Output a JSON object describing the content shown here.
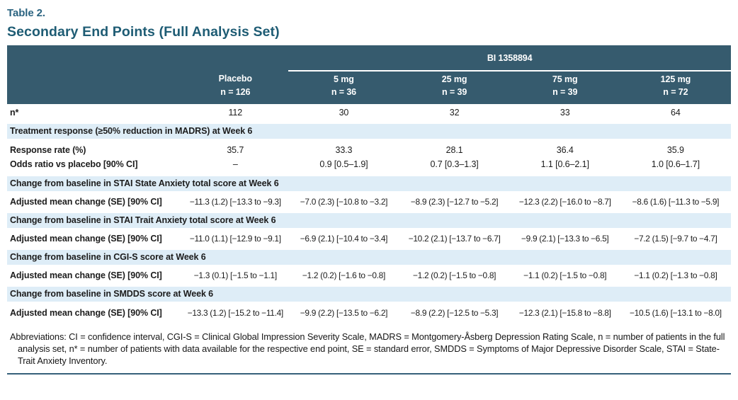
{
  "colors": {
    "header_background": "#365b6e",
    "section_band_background": "#deedf7",
    "title_teal": "#1e5c74",
    "eyebrow_teal": "#2a6380",
    "bottom_rule": "#36607a"
  },
  "title": {
    "eyebrow": "Table 2.",
    "heading": "Secondary End Points (Full Analysis Set)"
  },
  "table": {
    "spanner": "BI 1358894",
    "columns": [
      {
        "label": "Placebo",
        "n": "n = 126"
      },
      {
        "label": "5 mg",
        "n": "n = 36"
      },
      {
        "label": "25 mg",
        "n": "n = 39"
      },
      {
        "label": "75 mg",
        "n": "n = 39"
      },
      {
        "label": "125 mg",
        "n": "n = 72"
      }
    ],
    "n_row": {
      "label": "n*",
      "values": [
        "112",
        "30",
        "32",
        "33",
        "64"
      ]
    },
    "sections": [
      {
        "band": "Treatment response (≥50% reduction in MADRS) at Week 6",
        "rows": [
          {
            "label": "Response rate (%)",
            "values": [
              "35.7",
              "33.3",
              "28.1",
              "36.4",
              "35.9"
            ]
          },
          {
            "label": "Odds ratio vs placebo [90% CI]",
            "values": [
              "–",
              "0.9 [0.5–1.9]",
              "0.7 [0.3–1.3]",
              "1.1 [0.6–2.1]",
              "1.0 [0.6–1.7]"
            ]
          }
        ]
      },
      {
        "band": "Change from baseline in STAI State Anxiety total score at Week 6",
        "rows": [
          {
            "label": "Adjusted mean change (SE) [90% CI]",
            "values": [
              "−11.3 (1.2) [−13.3 to −9.3]",
              "−7.0 (2.3) [−10.8 to −3.2]",
              "−8.9 (2.3) [−12.7 to −5.2]",
              "−12.3 (2.2) [−16.0 to −8.7]",
              "−8.6 (1.6) [−11.3 to −5.9]"
            ]
          }
        ]
      },
      {
        "band": "Change from baseline in STAI Trait Anxiety total score at Week 6",
        "rows": [
          {
            "label": "Adjusted mean change (SE) [90% CI]",
            "values": [
              "−11.0 (1.1) [−12.9 to −9.1]",
              "−6.9 (2.1) [−10.4 to −3.4]",
              "−10.2 (2.1) [−13.7 to −6.7]",
              "−9.9 (2.1) [−13.3 to −6.5]",
              "−7.2 (1.5) [−9.7 to −4.7]"
            ]
          }
        ]
      },
      {
        "band": "Change from baseline in CGI-S score at Week 6",
        "rows": [
          {
            "label": "Adjusted mean change (SE) [90% CI]",
            "values": [
              "−1.3 (0.1) [−1.5 to −1.1]",
              "−1.2 (0.2) [−1.6 to −0.8]",
              "−1.2 (0.2) [−1.5 to −0.8]",
              "−1.1 (0.2) [−1.5 to −0.8]",
              "−1.1 (0.2) [−1.3 to −0.8]"
            ]
          }
        ]
      },
      {
        "band": "Change from baseline in SMDDS score at Week 6",
        "rows": [
          {
            "label": "Adjusted mean change (SE) [90% CI]",
            "values": [
              "−13.3 (1.2) [−15.2 to −11.4]",
              "−9.9 (2.2) [−13.5 to −6.2]",
              "−8.9 (2.2) [−12.5 to −5.3]",
              "−12.3 (2.1) [−15.8 to −8.8]",
              "−10.5 (1.6) [−13.1 to −8.0]"
            ]
          }
        ]
      }
    ],
    "footnote": "Abbreviations: CI = confidence interval, CGI-S = Clinical Global Impression Severity Scale, MADRS = Montgomery-Åsberg Depression Rating Scale, n = number of patients in the full analysis set, n* = number of patients with data available for the respective end point, SE = standard error, SMDDS = Symptoms of Major Depressive Disorder Scale, STAI = State-Trait Anxiety Inventory."
  }
}
